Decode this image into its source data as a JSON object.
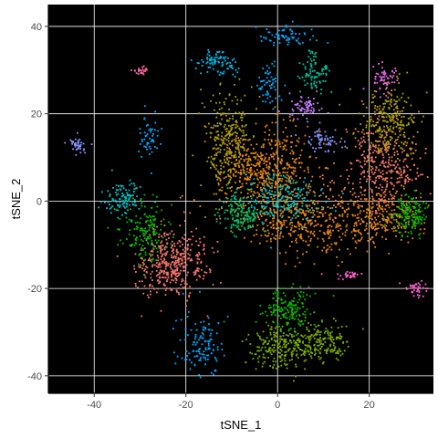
{
  "chart_data": {
    "type": "scatter",
    "title": "",
    "xlabel": "tSNE_1",
    "ylabel": "tSNE_2",
    "xlim": [
      -50,
      34
    ],
    "ylim": [
      -44,
      45
    ],
    "xticks": [
      -40,
      -20,
      0,
      20
    ],
    "yticks": [
      -40,
      -20,
      0,
      20,
      40
    ],
    "grid": true,
    "legend": "none",
    "background": "#000000",
    "grid_color": "#ffffff",
    "axis_color": "#000000",
    "seed": 7,
    "clusters": [
      {
        "cx": -3,
        "cy": 8,
        "sx": 5,
        "sy": 5,
        "n": 520,
        "color": "#E68613"
      },
      {
        "cx": 7,
        "cy": -4,
        "sx": 8,
        "sy": 3.5,
        "n": 480,
        "color": "#E68613"
      },
      {
        "cx": 23,
        "cy": -3,
        "sx": 4,
        "sy": 3,
        "n": 220,
        "color": "#E68613"
      },
      {
        "cx": 23,
        "cy": 9,
        "sx": 4.5,
        "sy": 5,
        "n": 350,
        "color": "#F8766D"
      },
      {
        "cx": -23,
        "cy": -14,
        "sx": 4,
        "sy": 3.8,
        "n": 400,
        "color": "#F8766D"
      },
      {
        "cx": -11,
        "cy": 14,
        "sx": 2.5,
        "sy": 6,
        "n": 260,
        "color": "#ABA300"
      },
      {
        "cx": 24,
        "cy": 19,
        "sx": 3,
        "sy": 4.5,
        "n": 240,
        "color": "#ABA300"
      },
      {
        "cx": 1,
        "cy": -33,
        "sx": 3.5,
        "sy": 2.5,
        "n": 240,
        "color": "#7CAE00"
      },
      {
        "cx": 10,
        "cy": -32,
        "sx": 3,
        "sy": 2,
        "n": 160,
        "color": "#7CAE00"
      },
      {
        "cx": 2,
        "cy": -25,
        "sx": 3,
        "sy": 2.8,
        "n": 160,
        "color": "#0CB702"
      },
      {
        "cx": -29,
        "cy": -7,
        "sx": 2.5,
        "sy": 3.5,
        "n": 160,
        "color": "#0CB702"
      },
      {
        "cx": 29,
        "cy": -3,
        "sx": 2,
        "sy": 2.2,
        "n": 150,
        "color": "#0CB702"
      },
      {
        "cx": -8,
        "cy": -3,
        "sx": 2.5,
        "sy": 2,
        "n": 140,
        "color": "#00BE67"
      },
      {
        "cx": 8,
        "cy": 30,
        "sx": 1.6,
        "sy": 2.5,
        "n": 90,
        "color": "#00C19A"
      },
      {
        "cx": -34,
        "cy": 1,
        "sx": 2,
        "sy": 1.8,
        "n": 110,
        "color": "#00BFC4"
      },
      {
        "cx": 2,
        "cy": 1,
        "sx": 4.5,
        "sy": 2.5,
        "n": 200,
        "color": "#00BFC4"
      },
      {
        "cx": -13,
        "cy": 32,
        "sx": 2,
        "sy": 1.5,
        "n": 90,
        "color": "#00B8E7"
      },
      {
        "cx": -17,
        "cy": -33,
        "sx": 2.5,
        "sy": 3.5,
        "n": 120,
        "color": "#00A9FF"
      },
      {
        "cx": 2,
        "cy": 38,
        "sx": 3,
        "sy": 1.1,
        "n": 70,
        "color": "#00A9FF"
      },
      {
        "cx": -2,
        "cy": 27,
        "sx": 1.1,
        "sy": 2.5,
        "n": 60,
        "color": "#00A9FF"
      },
      {
        "cx": -28,
        "cy": 15,
        "sx": 1.2,
        "sy": 2.2,
        "n": 50,
        "color": "#00A9FF"
      },
      {
        "cx": 10,
        "cy": 14,
        "sx": 2.2,
        "sy": 1.3,
        "n": 60,
        "color": "#8494FF"
      },
      {
        "cx": -44,
        "cy": 13,
        "sx": 1,
        "sy": 0.9,
        "n": 40,
        "color": "#8494FF"
      },
      {
        "cx": 6,
        "cy": 22,
        "sx": 1.6,
        "sy": 1.5,
        "n": 70,
        "color": "#C77CFF"
      },
      {
        "cx": 23,
        "cy": 28,
        "sx": 1.4,
        "sy": 1.7,
        "n": 60,
        "color": "#ED68ED"
      },
      {
        "cx": 30,
        "cy": -20,
        "sx": 1.1,
        "sy": 1,
        "n": 40,
        "color": "#FF61CC"
      },
      {
        "cx": 15,
        "cy": -17,
        "sx": 1.3,
        "sy": 0.5,
        "n": 30,
        "color": "#FF61CC"
      },
      {
        "cx": -30,
        "cy": 30,
        "sx": 0.7,
        "sy": 0.5,
        "n": 25,
        "color": "#FF68A1"
      }
    ]
  }
}
